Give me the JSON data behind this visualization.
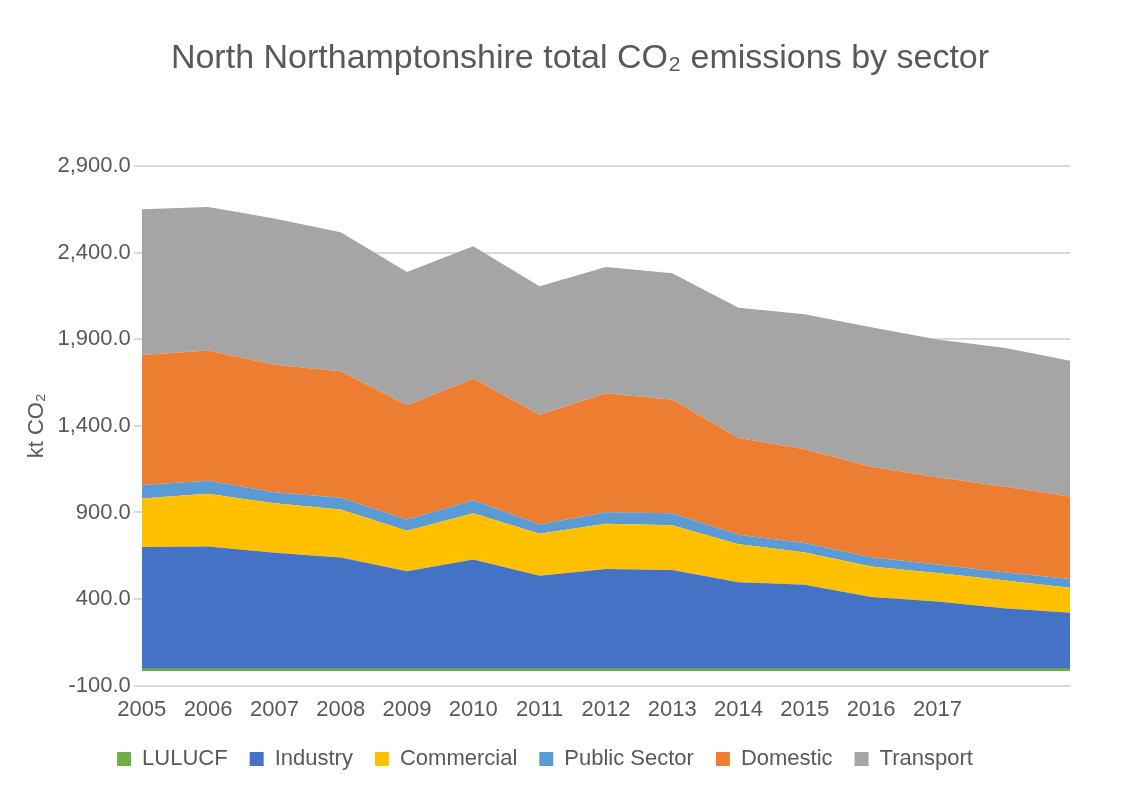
{
  "chart_data": {
    "type": "area",
    "title": "North Northamptonshire total CO₂ emissions by sector",
    "ylabel": "kt CO₂",
    "categories": [
      "2005",
      "2006",
      "2007",
      "2008",
      "2009",
      "2010",
      "2011",
      "2012",
      "2013",
      "2014",
      "2015",
      "2016",
      "2017",
      null,
      null
    ],
    "stacked": true,
    "series": [
      {
        "name": "LULUCF",
        "color": "#70ad47",
        "values": [
          -15,
          -15,
          -15,
          -15,
          -15,
          -15,
          -15,
          -15,
          -15,
          -15,
          -15,
          -15,
          -15,
          -15,
          -15
        ]
      },
      {
        "name": "Industry",
        "color": "#4472c4",
        "values": [
          715,
          719,
          683,
          655,
          575,
          644,
          549,
          588,
          583,
          512,
          498,
          427,
          401,
          362,
          336
        ]
      },
      {
        "name": "Commercial",
        "color": "#ffc000",
        "values": [
          280,
          304,
          285,
          277,
          235,
          266,
          243,
          262,
          258,
          220,
          186,
          176,
          165,
          161,
          144
        ]
      },
      {
        "name": "Public Sector",
        "color": "#5b9bd5",
        "values": [
          79,
          75,
          64,
          68,
          64,
          75,
          53,
          66,
          69,
          54,
          54,
          54,
          49,
          47,
          50
        ]
      },
      {
        "name": "Domestic",
        "color": "#ed7d31",
        "values": [
          751,
          753,
          736,
          730,
          660,
          702,
          635,
          687,
          656,
          559,
          542,
          522,
          504,
          495,
          477
        ]
      },
      {
        "name": "Transport",
        "color": "#a5a5a5",
        "values": [
          841,
          829,
          845,
          804,
          770,
          766,
          741,
          730,
          731,
          752,
          780,
          806,
          795,
          802,
          784
        ]
      }
    ],
    "ylim": [
      -100,
      2900
    ],
    "yticks": [
      {
        "value": -100,
        "label": "-100.0"
      },
      {
        "value": 400,
        "label": "400.0"
      },
      {
        "value": 900,
        "label": "900.0"
      },
      {
        "value": 1400,
        "label": "1,400.0"
      },
      {
        "value": 1900,
        "label": "1,900.0"
      },
      {
        "value": 2400,
        "label": "2,400.0"
      },
      {
        "value": 2900,
        "label": "2,900.0"
      }
    ],
    "grid": "y",
    "legend": "bottom",
    "marker": "none"
  }
}
